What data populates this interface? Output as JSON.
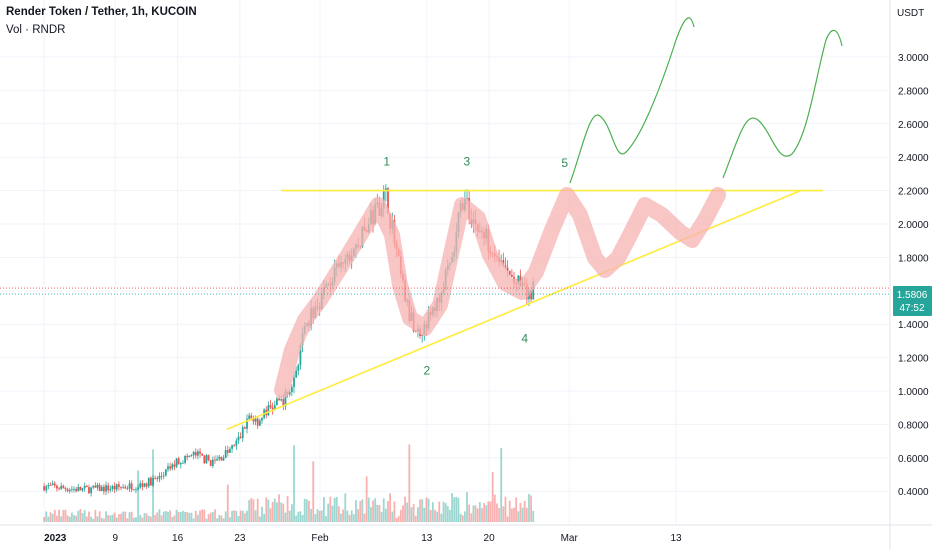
{
  "header": {
    "symbol_title": "Render Token / Tether, 1h, KUCOIN",
    "volume_label": "Vol · RNDR"
  },
  "price_axis": {
    "currency": "USDT",
    "last_price": "1.5806",
    "countdown": "47:52"
  },
  "colors": {
    "up": "#26a69a",
    "down": "#ef5350",
    "trendline": "#ffeb3b",
    "path_highlight": "#f7b3b3",
    "projection": "#4caf50",
    "annotation": "#2e8b57",
    "price_badge": "#26a69a",
    "grid": "#f0f3fa",
    "axis_text": "#131722"
  },
  "chart_data": {
    "type": "candlestick",
    "title": "Render Token / Tether, 1h, KUCOIN",
    "ylabel": "USDT",
    "ylim": [
      0.2,
      3.2
    ],
    "yticks": [
      "0.4000",
      "0.6000",
      "0.8000",
      "1.0000",
      "1.2000",
      "1.4000",
      "1.6000",
      "1.8000",
      "2.0000",
      "2.2000",
      "2.4000",
      "2.6000",
      "2.8000",
      "3.0000"
    ],
    "x_ticks": [
      {
        "label": "2023",
        "day": 0
      },
      {
        "label": "9",
        "day": 8
      },
      {
        "label": "16",
        "day": 15
      },
      {
        "label": "23",
        "day": 22
      },
      {
        "label": "Feb",
        "day": 31
      },
      {
        "label": "13",
        "day": 43
      },
      {
        "label": "20",
        "day": 50
      },
      {
        "label": "Mar",
        "day": 59
      },
      {
        "label": "13",
        "day": 71
      }
    ],
    "price_path": [
      [
        0,
        0.43
      ],
      [
        4,
        0.41
      ],
      [
        8,
        0.42
      ],
      [
        11,
        0.44
      ],
      [
        13,
        0.48
      ],
      [
        15,
        0.58
      ],
      [
        17,
        0.62
      ],
      [
        19,
        0.57
      ],
      [
        21,
        0.65
      ],
      [
        22,
        0.72
      ],
      [
        23,
        0.85
      ],
      [
        24,
        0.82
      ],
      [
        25,
        0.88
      ],
      [
        27,
        0.95
      ],
      [
        28,
        1.05
      ],
      [
        29,
        1.3
      ],
      [
        30,
        1.45
      ],
      [
        31,
        1.55
      ],
      [
        32,
        1.65
      ],
      [
        33,
        1.72
      ],
      [
        34,
        1.78
      ],
      [
        35,
        1.85
      ],
      [
        36,
        1.95
      ],
      [
        37,
        2.05
      ],
      [
        38,
        2.15
      ],
      [
        38.5,
        2.17
      ],
      [
        39,
        2.0
      ],
      [
        40,
        1.7
      ],
      [
        41,
        1.45
      ],
      [
        42,
        1.35
      ],
      [
        43,
        1.42
      ],
      [
        44,
        1.5
      ],
      [
        45,
        1.65
      ],
      [
        46,
        1.8
      ],
      [
        46.5,
        2.0
      ],
      [
        47,
        2.15
      ],
      [
        48,
        2.05
      ],
      [
        49,
        1.95
      ],
      [
        50,
        1.9
      ],
      [
        51,
        1.8
      ],
      [
        52,
        1.7
      ],
      [
        53,
        1.65
      ],
      [
        54,
        1.6
      ],
      [
        54.5,
        1.55
      ],
      [
        55,
        1.62
      ]
    ],
    "current_price": 1.5806,
    "resistance_level": 2.2,
    "support_trendline": {
      "from": [
        23,
        0.83
      ],
      "to": [
        85,
        2.2
      ]
    },
    "pattern_labels": [
      {
        "label": "1",
        "day": 38.5,
        "price": 2.35
      },
      {
        "label": "2",
        "day": 43,
        "price": 1.1
      },
      {
        "label": "3",
        "day": 47.5,
        "price": 2.35
      },
      {
        "label": "4",
        "day": 54,
        "price": 1.29
      },
      {
        "label": "5",
        "day": 58.5,
        "price": 2.34
      }
    ]
  }
}
